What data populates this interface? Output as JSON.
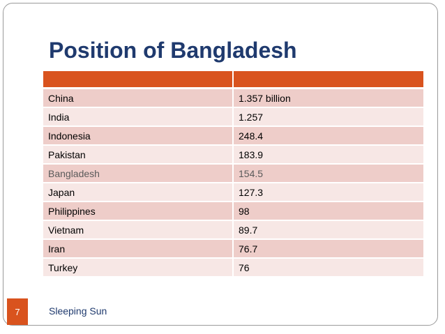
{
  "slide": {
    "title": "Position of Bangladesh",
    "footer": "Sleeping Sun",
    "page_number": "7"
  },
  "table": {
    "header": [
      "",
      ""
    ],
    "rows": [
      {
        "country": "China",
        "population": "1.357 billion"
      },
      {
        "country": "India",
        "population": "1.257"
      },
      {
        "country": "Indonesia",
        "population": "248.4"
      },
      {
        "country": "Pakistan",
        "population": "183.9"
      },
      {
        "country": "Bangladesh",
        "population": "154.5"
      },
      {
        "country": "Japan",
        "population": "127.3"
      },
      {
        "country": "Philippines",
        "population": "98"
      },
      {
        "country": "Vietnam",
        "population": "89.7"
      },
      {
        "country": "Iran",
        "population": "76.7"
      },
      {
        "country": "Turkey",
        "population": "76"
      }
    ]
  },
  "colors": {
    "accent": "#d9531e",
    "title": "#1f3a6e",
    "row_odd": "#eecdc9",
    "row_even": "#f7e7e5"
  }
}
